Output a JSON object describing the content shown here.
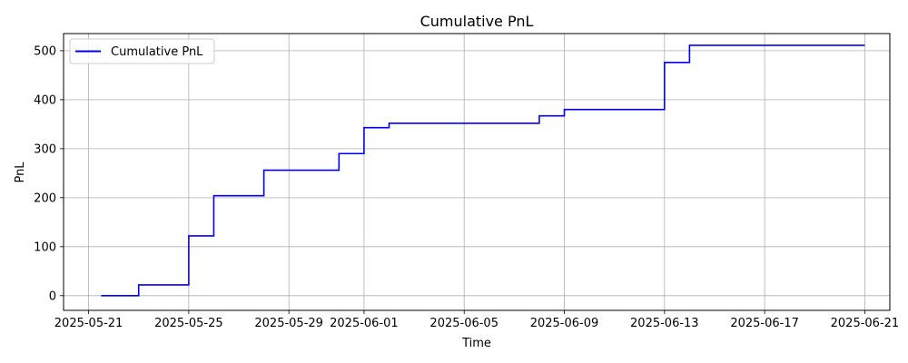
{
  "chart_data": {
    "type": "line",
    "title": "Cumulative PnL",
    "xlabel": "Time",
    "ylabel": "PnL",
    "x_type": "date",
    "xlim": [
      "2025-05-20",
      "2025-06-22"
    ],
    "ylim": [
      -30,
      535
    ],
    "x_ticks": [
      "2025-05-21",
      "2025-05-25",
      "2025-05-29",
      "2025-06-01",
      "2025-06-05",
      "2025-06-09",
      "2025-06-13",
      "2025-06-17",
      "2025-06-21"
    ],
    "y_ticks": [
      0,
      100,
      200,
      300,
      400,
      500
    ],
    "grid": true,
    "legend_position": "upper-left",
    "step": "post",
    "series": [
      {
        "name": "Cumulative PnL",
        "color": "#0000ff",
        "points": [
          {
            "x": "2025-05-21 12:00",
            "y": 0
          },
          {
            "x": "2025-05-23 00:00",
            "y": 22
          },
          {
            "x": "2025-05-25 00:00",
            "y": 122
          },
          {
            "x": "2025-05-26 00:00",
            "y": 204
          },
          {
            "x": "2025-05-28 00:00",
            "y": 256
          },
          {
            "x": "2025-05-31 00:00",
            "y": 290
          },
          {
            "x": "2025-06-01 00:00",
            "y": 343
          },
          {
            "x": "2025-06-02 00:00",
            "y": 352
          },
          {
            "x": "2025-06-08 00:00",
            "y": 367
          },
          {
            "x": "2025-06-09 00:00",
            "y": 380
          },
          {
            "x": "2025-06-13 00:00",
            "y": 476
          },
          {
            "x": "2025-06-14 00:00",
            "y": 511
          },
          {
            "x": "2025-06-21 00:00",
            "y": 511
          }
        ]
      }
    ]
  }
}
